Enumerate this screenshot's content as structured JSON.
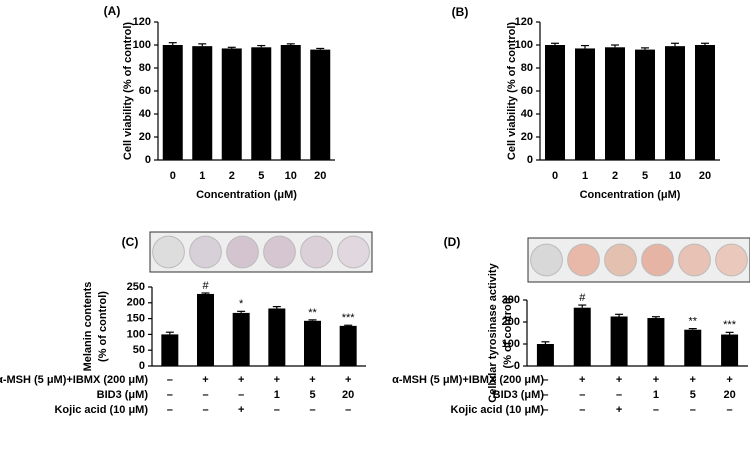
{
  "chart_data": [
    {
      "type": "bar",
      "title": "(A)",
      "categories": [
        "0",
        "1",
        "2",
        "5",
        "10",
        "20"
      ],
      "values": [
        100,
        99,
        97,
        98,
        100,
        96
      ],
      "errors": [
        2,
        2,
        1,
        1.5,
        1,
        1
      ],
      "color": "#000000",
      "xlabel": "Concentration (μM)",
      "ylabel": [
        "Cell viability (% of control)"
      ],
      "ylim": [
        0,
        120
      ],
      "yticks": [
        0,
        20,
        40,
        60,
        80,
        100,
        120
      ]
    },
    {
      "type": "bar",
      "title": "(B)",
      "categories": [
        "0",
        "1",
        "2",
        "5",
        "10",
        "20"
      ],
      "values": [
        100,
        97,
        98,
        96,
        99,
        100
      ],
      "errors": [
        1.5,
        2.5,
        2,
        1.5,
        2.5,
        1.5
      ],
      "color": "#000000",
      "xlabel": "Concentration (μM)",
      "ylabel": [
        "Cell viability (% of control)"
      ],
      "ylim": [
        0,
        120
      ],
      "yticks": [
        0,
        20,
        40,
        60,
        80,
        100,
        120
      ]
    },
    {
      "type": "bar",
      "title": "(C)",
      "values": [
        100,
        228,
        168,
        182,
        143,
        127
      ],
      "errors": [
        7,
        3,
        5,
        6,
        3,
        2
      ],
      "annotations": [
        null,
        "#",
        "*",
        null,
        "**",
        "***"
      ],
      "color": "#000000",
      "ylabel": [
        "Melanin contents",
        "(% of control)"
      ],
      "ylim": [
        0,
        250
      ],
      "yticks": [
        0,
        50,
        100,
        150,
        200,
        250
      ],
      "conditions": [
        {
          "label": "α-MSH (5 μM)+IBMX (200 μM)",
          "values": [
            "–",
            "+",
            "+",
            "+",
            "+",
            "+"
          ]
        },
        {
          "label": "BID3 (μM)",
          "values": [
            "–",
            "–",
            "–",
            "1",
            "5",
            "20"
          ]
        },
        {
          "label": "Kojic acid (10 μM)",
          "values": [
            "–",
            "–",
            "+",
            "–",
            "–",
            "–"
          ]
        }
      ]
    },
    {
      "type": "bar",
      "title": "(D)",
      "values": [
        100,
        265,
        225,
        218,
        165,
        143
      ],
      "errors": [
        10,
        12,
        10,
        6,
        5,
        10
      ],
      "annotations": [
        null,
        "#",
        null,
        null,
        "**",
        "***"
      ],
      "color": "#000000",
      "ylabel": [
        "Cellular tyrosinase activity",
        "(% of control)"
      ],
      "ylim": [
        0,
        300
      ],
      "yticks": [
        0,
        100,
        200,
        300
      ],
      "conditions": [
        {
          "label": "α-MSH (5 μM)+IBMX (200 μM)",
          "values": [
            "–",
            "+",
            "+",
            "+",
            "+",
            "+"
          ]
        },
        {
          "label": "BID3 (μM)",
          "values": [
            "–",
            "–",
            "–",
            "1",
            "5",
            "20"
          ]
        },
        {
          "label": "Kojic acid (10 μM)",
          "values": [
            "–",
            "–",
            "+",
            "–",
            "–",
            "–"
          ]
        }
      ]
    }
  ]
}
